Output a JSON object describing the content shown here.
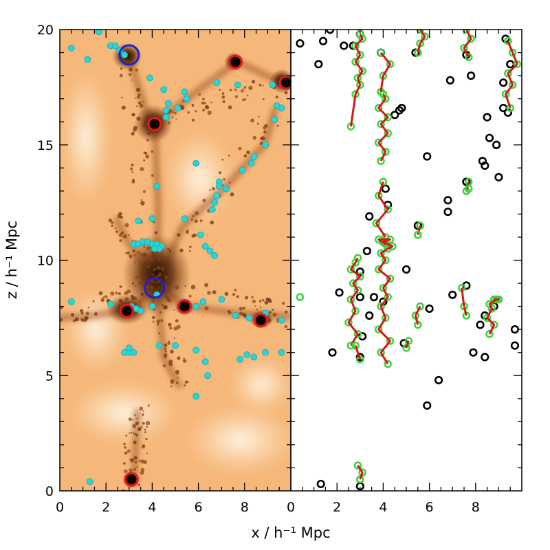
{
  "chart_data": {
    "type": "scatter",
    "xlabel": "x / h⁻¹ Mpc",
    "ylabel": "z / h⁻¹ Mpc",
    "xlim": [
      0,
      10
    ],
    "ylim": [
      0,
      20
    ],
    "left_panel": {
      "xticks": [
        0,
        2,
        4,
        6,
        8
      ],
      "background": "density map (orange/brown colormap)",
      "cyan_points": [
        [
          0.5,
          19.2
        ],
        [
          1.7,
          19.9
        ],
        [
          1.2,
          18.7
        ],
        [
          2.2,
          19.3
        ],
        [
          2.4,
          19.3
        ],
        [
          2.6,
          19.1
        ],
        [
          2.8,
          18.9
        ],
        [
          3.9,
          17.9
        ],
        [
          4.5,
          17.4
        ],
        [
          4.7,
          16.8
        ],
        [
          4.6,
          16.5
        ],
        [
          4.6,
          16.2
        ],
        [
          5.1,
          16.6
        ],
        [
          5.5,
          17.0
        ],
        [
          5.4,
          17.3
        ],
        [
          6.8,
          17.7
        ],
        [
          7.7,
          17.6
        ],
        [
          9.2,
          17.6
        ],
        [
          9.4,
          16.7
        ],
        [
          9.6,
          16.6
        ],
        [
          9.3,
          16.1
        ],
        [
          8.9,
          15.0
        ],
        [
          8.4,
          14.5
        ],
        [
          8.3,
          14.2
        ],
        [
          7.9,
          13.9
        ],
        [
          7.2,
          13.1
        ],
        [
          6.9,
          13.4
        ],
        [
          6.9,
          13.2
        ],
        [
          6.8,
          12.8
        ],
        [
          6.7,
          12.5
        ],
        [
          6.6,
          12.2
        ],
        [
          5.9,
          14.2
        ],
        [
          4.2,
          13.2
        ],
        [
          3.4,
          11.7
        ],
        [
          4.0,
          11.8
        ],
        [
          5.4,
          11.8
        ],
        [
          6.1,
          11.1
        ],
        [
          6.3,
          10.6
        ],
        [
          6.5,
          10.4
        ],
        [
          6.7,
          10.2
        ],
        [
          3.2,
          10.7
        ],
        [
          3.4,
          10.7
        ],
        [
          3.6,
          10.8
        ],
        [
          3.8,
          10.8
        ],
        [
          4.0,
          10.7
        ],
        [
          4.2,
          10.7
        ],
        [
          4.4,
          10.6
        ],
        [
          4.3,
          10.5
        ],
        [
          4.1,
          10.5
        ],
        [
          4.2,
          8.5
        ],
        [
          3.5,
          7.8
        ],
        [
          3.1,
          8.0
        ],
        [
          3.3,
          7.9
        ],
        [
          0.5,
          8.2
        ],
        [
          2.2,
          8.1
        ],
        [
          4.0,
          8.0
        ],
        [
          5.9,
          8.0
        ],
        [
          6.2,
          8.2
        ],
        [
          7.0,
          8.3
        ],
        [
          7.6,
          7.6
        ],
        [
          8.2,
          7.5
        ],
        [
          8.9,
          7.7
        ],
        [
          9.6,
          7.4
        ],
        [
          5.0,
          6.3
        ],
        [
          4.3,
          6.3
        ],
        [
          2.8,
          6.0
        ],
        [
          3.0,
          6.0
        ],
        [
          3.2,
          6.0
        ],
        [
          3.0,
          6.2
        ],
        [
          5.9,
          6.1
        ],
        [
          6.3,
          5.6
        ],
        [
          7.8,
          5.7
        ],
        [
          8.1,
          5.9
        ],
        [
          8.4,
          5.8
        ],
        [
          8.9,
          6.0
        ],
        [
          9.6,
          6.0
        ],
        [
          6.4,
          5.0
        ],
        [
          5.9,
          4.1
        ],
        [
          1.3,
          0.4
        ]
      ],
      "red_rings": [
        [
          7.6,
          18.6
        ],
        [
          9.8,
          17.7
        ],
        [
          4.1,
          15.9
        ],
        [
          2.9,
          7.8
        ],
        [
          5.4,
          8.0
        ],
        [
          8.7,
          7.4
        ],
        [
          3.1,
          0.5
        ]
      ],
      "blue_rings": [
        [
          3.0,
          18.9
        ],
        [
          4.1,
          8.8
        ]
      ]
    },
    "right_panel": {
      "xticks": [
        0,
        2,
        4,
        6,
        8
      ],
      "black_rings": [
        [
          0.4,
          19.4
        ],
        [
          1.4,
          19.5
        ],
        [
          1.7,
          20.0
        ],
        [
          2.3,
          19.3
        ],
        [
          2.7,
          19.3
        ],
        [
          3.0,
          19.8
        ],
        [
          1.2,
          18.5
        ],
        [
          3.9,
          19.0
        ],
        [
          5.4,
          19.0
        ],
        [
          6.9,
          17.8
        ],
        [
          7.6,
          18.9
        ],
        [
          7.8,
          18.0
        ],
        [
          9.3,
          19.6
        ],
        [
          9.5,
          18.5
        ],
        [
          9.2,
          17.7
        ],
        [
          4.8,
          16.6
        ],
        [
          4.7,
          16.5
        ],
        [
          4.5,
          16.3
        ],
        [
          9.2,
          16.6
        ],
        [
          9.4,
          16.4
        ],
        [
          8.5,
          16.2
        ],
        [
          8.9,
          15.0
        ],
        [
          8.6,
          15.3
        ],
        [
          5.9,
          14.5
        ],
        [
          8.4,
          14.1
        ],
        [
          8.3,
          14.3
        ],
        [
          9.0,
          13.6
        ],
        [
          7.6,
          13.4
        ],
        [
          6.8,
          12.6
        ],
        [
          6.8,
          12.1
        ],
        [
          4.1,
          13.1
        ],
        [
          3.4,
          11.9
        ],
        [
          5.5,
          11.5
        ],
        [
          4.2,
          12.4
        ],
        [
          3.3,
          10.4
        ],
        [
          4.0,
          10.8
        ],
        [
          5.0,
          9.6
        ],
        [
          3.0,
          9.5
        ],
        [
          3.0,
          8.4
        ],
        [
          3.6,
          8.4
        ],
        [
          2.1,
          8.6
        ],
        [
          7.0,
          8.5
        ],
        [
          7.6,
          8.9
        ],
        [
          6.0,
          7.9
        ],
        [
          3.4,
          7.6
        ],
        [
          4.0,
          8.2
        ],
        [
          8.4,
          7.6
        ],
        [
          8.8,
          8.0
        ],
        [
          9.7,
          7.0
        ],
        [
          8.2,
          7.2
        ],
        [
          3.1,
          6.7
        ],
        [
          4.9,
          6.4
        ],
        [
          9.7,
          6.3
        ],
        [
          1.8,
          6.0
        ],
        [
          3.0,
          5.8
        ],
        [
          7.9,
          6.0
        ],
        [
          8.4,
          5.8
        ],
        [
          6.4,
          4.8
        ],
        [
          5.9,
          3.7
        ],
        [
          1.3,
          0.3
        ],
        [
          3.0,
          0.2
        ]
      ],
      "tracks": [
        {
          "x": [
            2.6,
            2.8,
            3.0,
            2.9,
            3.1,
            2.8,
            3.0,
            2.8,
            3.1,
            3.0
          ],
          "y": [
            15.8,
            17.2,
            17.6,
            17.9,
            18.2,
            18.6,
            18.9,
            19.3,
            19.6,
            19.8
          ]
        },
        {
          "x": [
            3.9,
            4.1,
            3.8,
            4.2,
            3.9,
            4.2,
            3.8,
            4.1,
            4.0
          ],
          "y": [
            14.3,
            14.7,
            15.1,
            15.5,
            15.9,
            16.2,
            16.6,
            17.0,
            17.2
          ]
        },
        {
          "x": [
            3.9,
            4.0,
            4.3,
            3.9
          ],
          "y": [
            17.3,
            18.0,
            18.5,
            19.0
          ]
        },
        {
          "x": [
            5.5,
            5.6,
            5.8,
            5.6
          ],
          "y": [
            19.0,
            19.4,
            19.7,
            20.0
          ]
        },
        {
          "x": [
            7.7,
            7.5,
            7.8,
            7.6
          ],
          "y": [
            18.8,
            19.2,
            19.6,
            20.0
          ]
        },
        {
          "x": [
            9.5,
            9.3,
            9.6,
            9.4,
            9.8,
            9.6,
            9.4
          ],
          "y": [
            16.6,
            17.2,
            17.6,
            18.1,
            18.5,
            19.0,
            19.5
          ]
        },
        {
          "x": [
            4.1,
            3.7,
            4.2,
            3.8,
            4.0
          ],
          "y": [
            11.0,
            11.6,
            12.2,
            12.8,
            13.4
          ]
        },
        {
          "x": [
            5.5,
            5.6
          ],
          "y": [
            11.1,
            11.5
          ]
        },
        {
          "x": [
            7.6,
            7.7
          ],
          "y": [
            13.0,
            13.4
          ]
        },
        {
          "x": [
            2.6,
            2.9,
            2.5,
            2.8,
            2.6,
            2.9,
            2.7,
            3.0,
            2.6,
            2.8,
            2.9
          ],
          "y": [
            6.3,
            6.8,
            7.3,
            7.8,
            8.3,
            8.7,
            9.0,
            9.3,
            9.6,
            9.9,
            10.1
          ]
        },
        {
          "x": [
            3.0,
            2.8
          ],
          "y": [
            5.7,
            6.3
          ]
        },
        {
          "x": [
            4.2,
            3.9,
            4.3,
            3.8,
            4.1,
            3.9,
            4.2,
            4.0,
            4.3,
            3.8,
            4.1,
            3.9,
            4.2,
            4.4,
            4.0,
            4.3,
            3.8,
            4.1
          ],
          "y": [
            5.5,
            6.0,
            6.5,
            7.0,
            7.5,
            8.0,
            8.4,
            8.8,
            9.2,
            9.6,
            10.0,
            10.3,
            10.5,
            10.6,
            10.8,
            10.9,
            10.9,
            10.7
          ]
        },
        {
          "x": [
            5.5,
            5.4,
            5.6
          ],
          "y": [
            7.2,
            7.6,
            8.0
          ]
        },
        {
          "x": [
            7.6,
            7.5,
            7.4
          ],
          "y": [
            7.6,
            8.0,
            8.8
          ]
        },
        {
          "x": [
            8.6,
            8.8,
            8.5,
            8.7,
            8.6,
            8.9,
            9.0,
            8.8
          ],
          "y": [
            6.8,
            7.2,
            7.5,
            7.9,
            8.1,
            8.3,
            8.3,
            8.3
          ]
        },
        {
          "x": [
            5.0,
            5.1
          ],
          "y": [
            6.2,
            6.5
          ]
        },
        {
          "x": [
            3.0,
            3.1,
            2.9
          ],
          "y": [
            0.5,
            0.8,
            1.1
          ]
        }
      ],
      "green_extra": [
        [
          0.4,
          8.4
        ],
        [
          7.7,
          13.1
        ],
        [
          5.5,
          11.1
        ]
      ]
    }
  }
}
